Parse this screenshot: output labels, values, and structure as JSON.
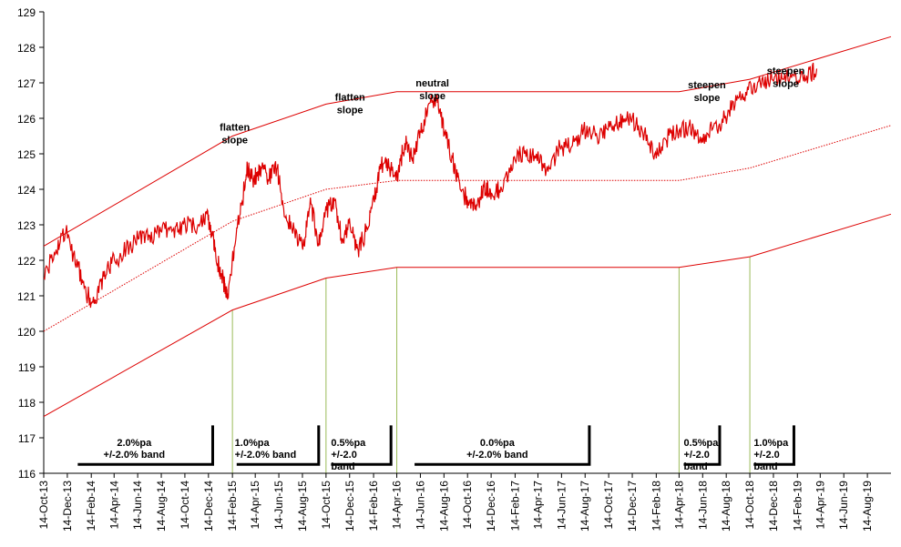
{
  "chart_data": {
    "type": "line",
    "title": "",
    "xlabel": "",
    "ylabel": "",
    "ylim": [
      116,
      129
    ],
    "yticks": [
      116,
      117,
      118,
      119,
      120,
      121,
      122,
      123,
      124,
      125,
      126,
      127,
      128,
      129
    ],
    "xlim": [
      "2013-10-14",
      "2019-10-14"
    ],
    "xtick_labels": [
      "14-Oct-13",
      "14-Dec-13",
      "14-Feb-14",
      "14-Apr-14",
      "14-Jun-14",
      "14-Aug-14",
      "14-Oct-14",
      "14-Dec-14",
      "14-Feb-15",
      "14-Apr-15",
      "14-Jun-15",
      "14-Aug-15",
      "14-Oct-15",
      "14-Dec-15",
      "14-Feb-16",
      "14-Apr-16",
      "14-Jun-16",
      "14-Aug-16",
      "14-Oct-16",
      "14-Dec-16",
      "14-Feb-17",
      "14-Apr-17",
      "14-Jun-17",
      "14-Aug-17",
      "14-Oct-17",
      "14-Dec-17",
      "14-Feb-18",
      "14-Apr-18",
      "14-Jun-18",
      "14-Aug-18",
      "14-Oct-18",
      "14-Dec-18",
      "14-Feb-19",
      "14-Apr-19",
      "14-Jun-19",
      "14-Aug-19"
    ],
    "grid": false,
    "colors": {
      "price": "#dd0000",
      "bands": "#dd0000",
      "markers": "#9bbb59",
      "brackets": "#000000"
    },
    "series": [
      {
        "style": "solid-noisy",
        "x": [
          "2013-10-14",
          "2013-11-15",
          "2013-12-10",
          "2014-01-10",
          "2014-02-05",
          "2014-02-25",
          "2014-03-20",
          "2014-04-15",
          "2014-05-15",
          "2014-06-15",
          "2014-07-15",
          "2014-08-15",
          "2014-09-15",
          "2014-10-15",
          "2014-11-15",
          "2014-12-10",
          "2014-12-25",
          "2015-01-10",
          "2015-01-25",
          "2015-02-02",
          "2015-02-20",
          "2015-03-10",
          "2015-03-25",
          "2015-04-10",
          "2015-05-01",
          "2015-05-20",
          "2015-06-10",
          "2015-07-01",
          "2015-07-25",
          "2015-08-15",
          "2015-09-05",
          "2015-09-25",
          "2015-10-15",
          "2015-11-05",
          "2015-11-25",
          "2015-12-15",
          "2016-01-05",
          "2016-01-25",
          "2016-02-15",
          "2016-03-05",
          "2016-03-25",
          "2016-04-15",
          "2016-05-05",
          "2016-05-25",
          "2016-06-15",
          "2016-07-05",
          "2016-07-25",
          "2016-08-15",
          "2016-09-05",
          "2016-09-25",
          "2016-10-15",
          "2016-11-05",
          "2016-11-25",
          "2016-12-15",
          "2017-01-10",
          "2017-02-10",
          "2017-03-10",
          "2017-04-10",
          "2017-05-10",
          "2017-06-10",
          "2017-07-10",
          "2017-08-10",
          "2017-09-10",
          "2017-10-10",
          "2017-11-10",
          "2017-12-10",
          "2018-01-10",
          "2018-02-10",
          "2018-03-10",
          "2018-04-10",
          "2018-05-10",
          "2018-06-10",
          "2018-07-10",
          "2018-08-10",
          "2018-09-10",
          "2018-10-10",
          "2018-11-10",
          "2018-12-10",
          "2019-01-10",
          "2019-02-10",
          "2019-03-10",
          "2019-04-05"
        ],
        "values": [
          121.5,
          122.3,
          122.8,
          121.8,
          121.0,
          120.8,
          121.7,
          122.0,
          122.3,
          122.6,
          122.7,
          122.8,
          122.9,
          123.0,
          122.9,
          123.3,
          122.7,
          121.8,
          121.3,
          121.0,
          122.4,
          123.6,
          124.6,
          124.3,
          124.6,
          124.3,
          124.6,
          123.2,
          122.8,
          122.3,
          123.6,
          122.4,
          123.4,
          123.7,
          122.6,
          123.0,
          122.3,
          122.8,
          123.7,
          124.7,
          124.6,
          124.4,
          125.3,
          124.9,
          125.6,
          126.4,
          126.5,
          125.6,
          124.9,
          124.0,
          123.7,
          123.4,
          124.1,
          123.9,
          124.0,
          124.9,
          125.0,
          125.0,
          124.5,
          125.2,
          125.2,
          125.7,
          125.5,
          125.7,
          125.9,
          126.0,
          125.6,
          125.0,
          125.4,
          125.6,
          125.8,
          125.3,
          125.7,
          126.0,
          126.5,
          126.8,
          127.0,
          127.1,
          127.1,
          127.2,
          127.2,
          127.4
        ]
      },
      {
        "style": "solid",
        "x": [
          "2013-10-14",
          "2015-02-14",
          "2015-10-14",
          "2016-04-14",
          "2018-04-14",
          "2018-10-14",
          "2019-10-14"
        ],
        "values": [
          122.4,
          125.5,
          126.4,
          126.75,
          126.75,
          127.1,
          128.3
        ]
      },
      {
        "style": "dotted",
        "x": [
          "2013-10-14",
          "2015-02-14",
          "2015-10-14",
          "2016-04-14",
          "2018-04-14",
          "2018-10-14",
          "2019-10-14"
        ],
        "values": [
          120.0,
          123.1,
          124.0,
          124.25,
          124.25,
          124.6,
          125.8
        ]
      },
      {
        "style": "solid",
        "x": [
          "2013-10-14",
          "2015-02-14",
          "2015-10-14",
          "2016-04-14",
          "2018-04-14",
          "2018-10-14",
          "2019-10-14"
        ],
        "values": [
          117.6,
          120.6,
          121.5,
          121.8,
          121.8,
          122.1,
          123.3
        ]
      }
    ],
    "regime_markers": {
      "x": [
        "2015-02-14",
        "2015-10-14",
        "2016-04-14",
        "2018-04-14",
        "2018-10-14"
      ],
      "y_from": 116,
      "y_to_series_index": 3
    },
    "slope_labels": [
      {
        "x": "2015-02-20",
        "y": 125.65,
        "lines": [
          "flatten",
          "slope"
        ]
      },
      {
        "x": "2015-12-15",
        "y": 126.5,
        "lines": [
          "flatten",
          "slope"
        ]
      },
      {
        "x": "2016-07-15",
        "y": 126.9,
        "lines": [
          "neutral",
          "slope"
        ]
      },
      {
        "x": "2018-06-25",
        "y": 126.85,
        "lines": [
          "steepen",
          "slope"
        ]
      },
      {
        "x": "2019-01-15",
        "y": 127.25,
        "lines": [
          "steepen",
          "slope"
        ]
      }
    ],
    "band_labels": [
      {
        "x": "2014-06-05",
        "y": 116.77,
        "lines": [
          "2.0%pa",
          "+/-2.0% band"
        ],
        "bracket_x": [
          "2014-01-10",
          "2014-12-25"
        ],
        "bracket_y": [
          116.25,
          117.35
        ]
      },
      {
        "x": "2015-02-20",
        "y": 116.77,
        "lines": [
          "1.0%pa",
          "+/-2.0%  band"
        ],
        "bracket_x": [
          "2015-02-25",
          "2015-09-25"
        ],
        "bracket_y": [
          116.25,
          117.35
        ],
        "align": "start"
      },
      {
        "x": "2015-10-27",
        "y": 116.77,
        "lines": [
          "0.5%pa",
          "+/-2.0",
          "band"
        ],
        "bracket_x": [
          "2015-10-27",
          "2016-03-30"
        ],
        "bracket_y": [
          116.25,
          117.35
        ],
        "align": "start"
      },
      {
        "x": "2016-12-30",
        "y": 116.77,
        "lines": [
          "0.0%pa",
          "+/-2.0%  band"
        ],
        "bracket_x": [
          "2016-05-30",
          "2017-08-25"
        ],
        "bracket_y": [
          116.25,
          117.35
        ]
      },
      {
        "x": "2018-04-26",
        "y": 116.77,
        "lines": [
          "0.5%pa",
          "+/-2.0",
          "band"
        ],
        "bracket_x": [
          "2018-04-26",
          "2018-07-28"
        ],
        "bracket_y": [
          116.25,
          117.35
        ],
        "align": "start"
      },
      {
        "x": "2018-10-24",
        "y": 116.77,
        "lines": [
          "1.0%pa",
          "+/-2.0",
          "band"
        ],
        "bracket_x": [
          "2018-10-24",
          "2019-02-05"
        ],
        "bracket_y": [
          116.25,
          117.35
        ],
        "align": "start"
      }
    ]
  }
}
